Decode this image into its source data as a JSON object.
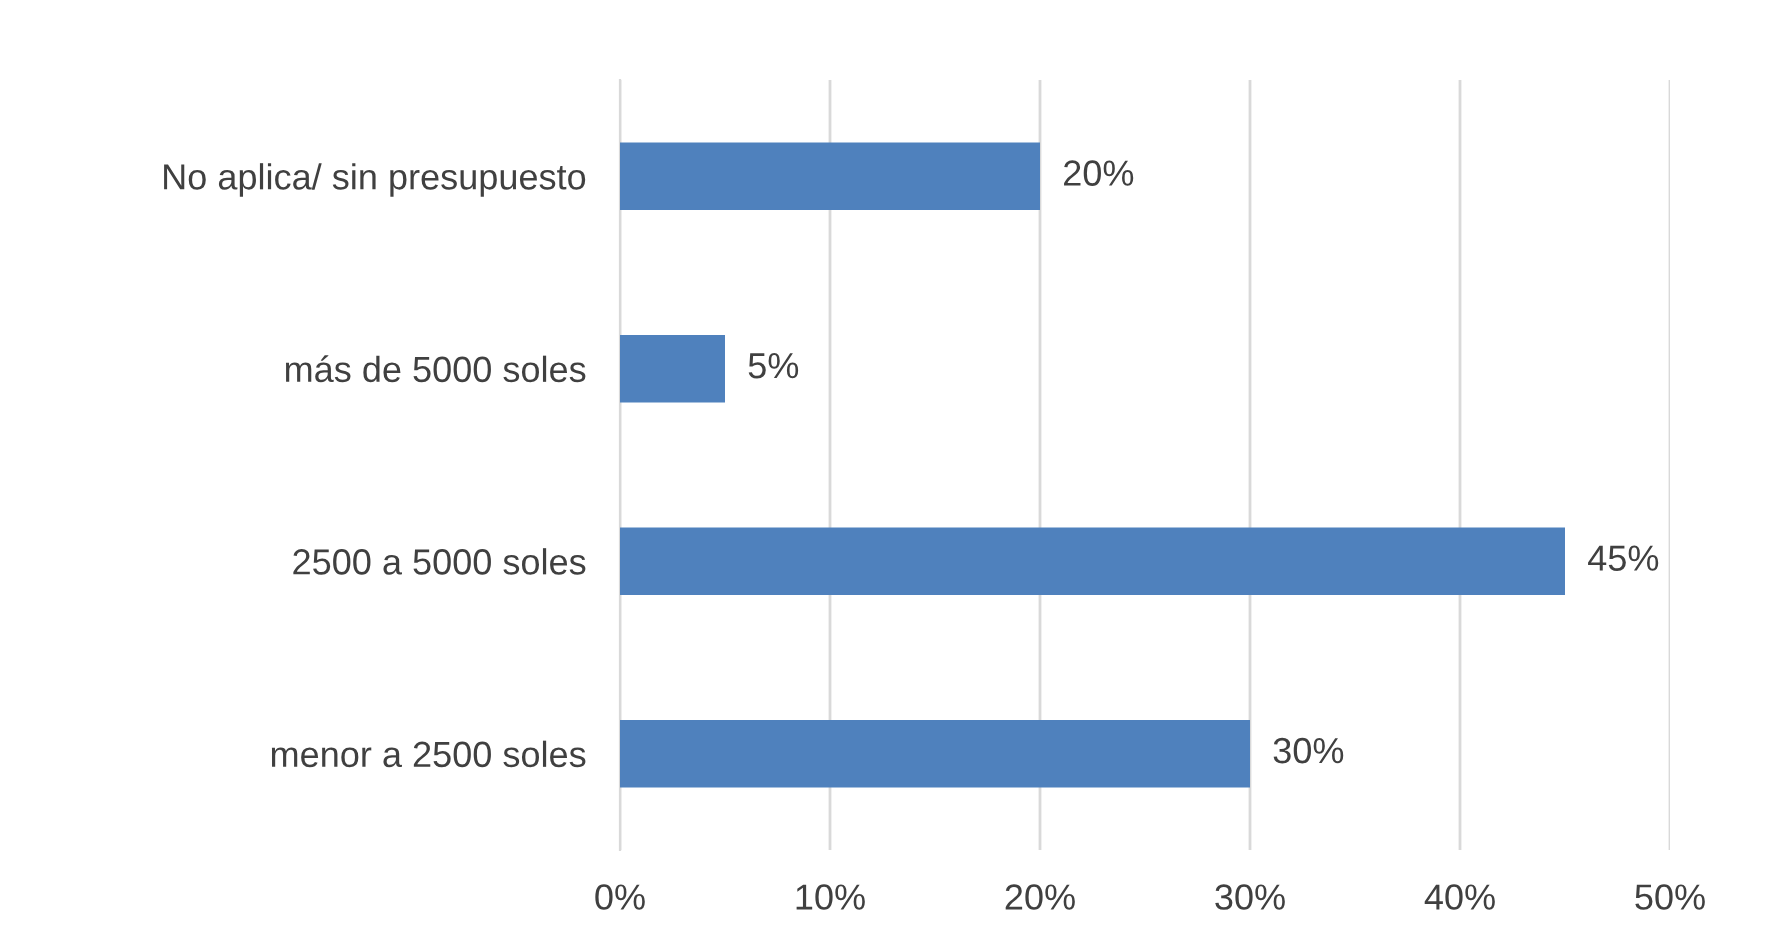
{
  "chart_data": {
    "type": "bar",
    "orientation": "horizontal",
    "categories": [
      "No aplica/ sin presupuesto",
      "más de 5000 soles",
      "2500 a 5000 soles",
      "menor a 2500 soles"
    ],
    "values": [
      20,
      5,
      45,
      30
    ],
    "value_labels": [
      "20%",
      "5%",
      "45%",
      "30%"
    ],
    "color": "#4f81bd",
    "xlim": [
      0,
      50
    ],
    "xticks": [
      {
        "value": 0,
        "label": "0%"
      },
      {
        "value": 10,
        "label": "10%"
      },
      {
        "value": 20,
        "label": "20%"
      },
      {
        "value": 30,
        "label": "30%"
      },
      {
        "value": 40,
        "label": "40%"
      },
      {
        "value": 50,
        "label": "50%"
      }
    ],
    "grid": "x",
    "legend": false
  }
}
